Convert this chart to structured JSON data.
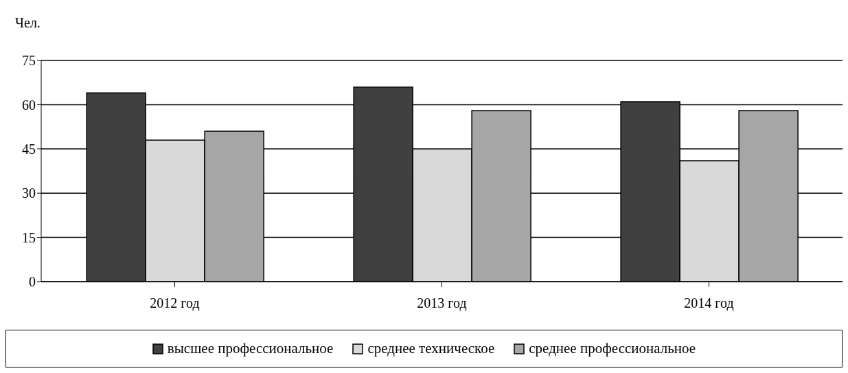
{
  "chart_data": {
    "type": "bar",
    "ylabel": "Чел.",
    "categories": [
      "2012 год",
      "2013 год",
      "2014 год"
    ],
    "series": [
      {
        "name": "высшее профессиональное",
        "color": "#404040",
        "values": [
          64,
          66,
          61
        ]
      },
      {
        "name": "среднее техническое",
        "color": "#d9d9d9",
        "values": [
          48,
          45,
          41
        ]
      },
      {
        "name": "среднее профессиональное",
        "color": "#a6a6a6",
        "values": [
          51,
          58,
          58
        ]
      }
    ],
    "ylim": [
      0,
      75
    ],
    "yticks": [
      0,
      15,
      30,
      45,
      60,
      75
    ],
    "grid": "y",
    "legend": "bottom"
  }
}
